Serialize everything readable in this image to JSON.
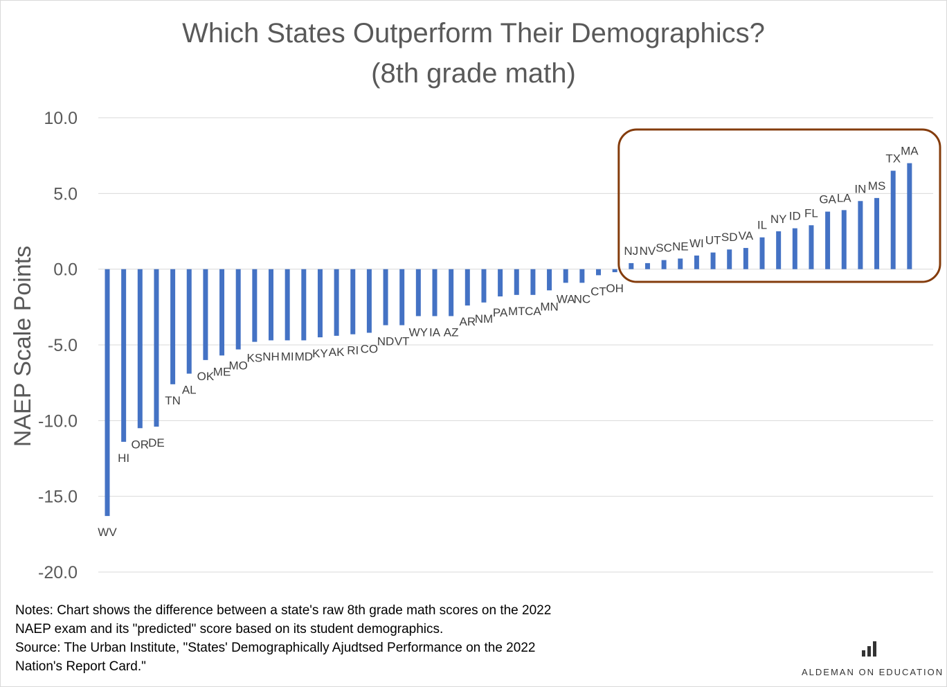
{
  "title_line1": "Which States Outperform Their Demographics?",
  "title_line2": "(8th grade math)",
  "notes": [
    "Notes: Chart shows the difference between a state's raw 8th grade math scores on the 2022",
    "NAEP exam and its \"predicted\" score based on its student demographics.",
    "Source: The Urban Institute, \"States' Demographically Ajudtsed Performance on the 2022",
    "Nation's Report Card.\""
  ],
  "brand": "ALDEMAN ON EDUCATION",
  "brand_icon": "bar-chart-logo-icon",
  "colors": {
    "bar": "#4472c4",
    "highlight_box": "#843c0c",
    "grid": "#d9d9d9",
    "text": "#595959"
  },
  "chart_data": {
    "type": "bar",
    "title": "Which States Outperform Their Demographics? (8th grade math)",
    "ylabel": "NAEP Scale Points",
    "xlabel": "",
    "ylim": [
      -20,
      10
    ],
    "yticks": [
      "10.0",
      "5.0",
      "0.0",
      "-5.0",
      "-10.0",
      "-15.0",
      "-20.0"
    ],
    "grid": true,
    "legend": "none",
    "highlight_box": "states with positive values",
    "categories": [
      "WV",
      "HI",
      "OR",
      "DE",
      "TN",
      "AL",
      "OK",
      "ME",
      "MO",
      "KS",
      "NH",
      "MI",
      "MD",
      "KY",
      "AK",
      "RI",
      "CO",
      "ND",
      "VT",
      "WY",
      "IA",
      "AZ",
      "AR",
      "NM",
      "PA",
      "MT",
      "CA",
      "MN",
      "WA",
      "NC",
      "CT",
      "OH",
      "NJ",
      "NV",
      "SC",
      "NE",
      "WI",
      "UT",
      "SD",
      "VA",
      "IL",
      "NY",
      "ID",
      "FL",
      "GA",
      "LA",
      "IN",
      "MS",
      "TX",
      "MA"
    ],
    "values": [
      -16.3,
      -11.4,
      -10.5,
      -10.4,
      -7.6,
      -6.9,
      -6.0,
      -5.7,
      -5.3,
      -4.8,
      -4.7,
      -4.7,
      -4.7,
      -4.5,
      -4.4,
      -4.3,
      -4.2,
      -3.7,
      -3.7,
      -3.1,
      -3.1,
      -3.1,
      -2.4,
      -2.2,
      -1.8,
      -1.7,
      -1.7,
      -1.4,
      -0.9,
      -0.9,
      -0.4,
      -0.2,
      0.4,
      0.4,
      0.6,
      0.7,
      0.9,
      1.1,
      1.3,
      1.4,
      2.1,
      2.5,
      2.7,
      2.9,
      3.8,
      3.9,
      4.5,
      4.7,
      6.5,
      7.0
    ]
  }
}
